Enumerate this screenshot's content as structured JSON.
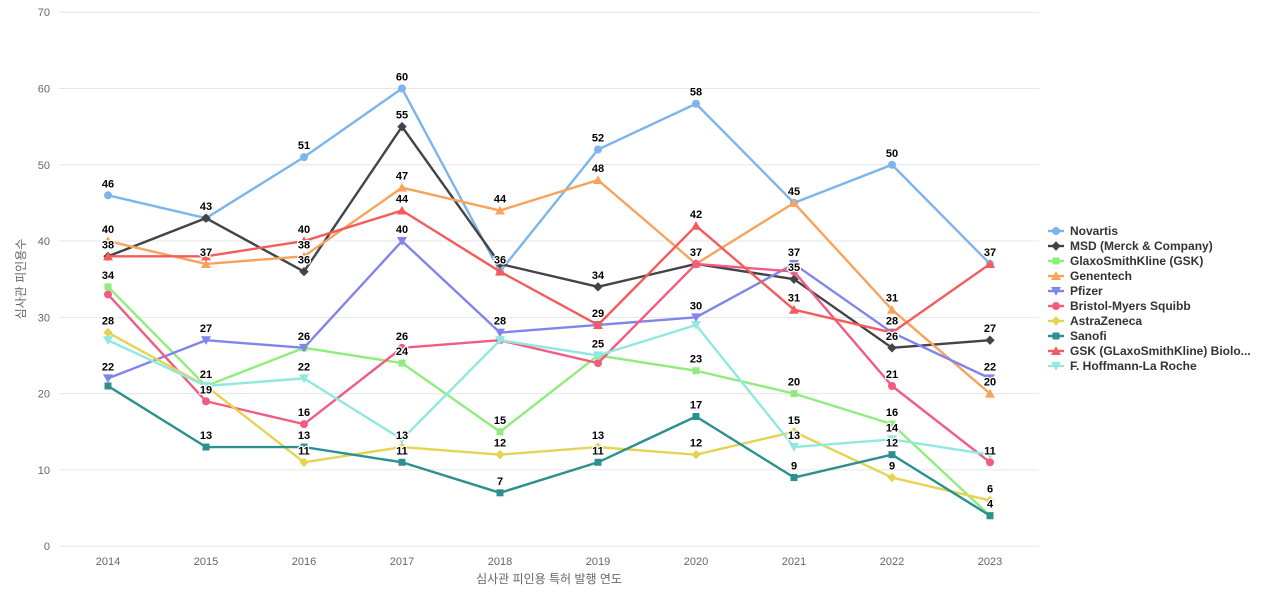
{
  "chart_data": {
    "type": "line",
    "title": "",
    "xlabel": "심사관 피인용 특허 발행 연도",
    "ylabel": "심사관 피인용수",
    "categories": [
      "2014",
      "2015",
      "2016",
      "2017",
      "2018",
      "2019",
      "2020",
      "2021",
      "2022",
      "2023"
    ],
    "yticks": [
      0,
      10,
      20,
      30,
      40,
      50,
      60,
      70
    ],
    "ylim": [
      0,
      70
    ],
    "grid": true,
    "legend_position": "right",
    "series": [
      {
        "name": "Novartis",
        "color": "#7cb5ec",
        "marker": "circle",
        "values": [
          46,
          43,
          51,
          60,
          36,
          52,
          58,
          45,
          50,
          37
        ]
      },
      {
        "name": "MSD (Merck & Company)",
        "color": "#434348",
        "marker": "diamond",
        "values": [
          38,
          43,
          36,
          55,
          37,
          34,
          37,
          35,
          26,
          27
        ]
      },
      {
        "name": "GlaxoSmithKline (GSK)",
        "color": "#90ed7d",
        "marker": "square",
        "values": [
          34,
          21,
          26,
          24,
          15,
          25,
          23,
          20,
          16,
          4
        ]
      },
      {
        "name": "Genentech",
        "color": "#f7a35c",
        "marker": "triangle",
        "values": [
          40,
          37,
          38,
          47,
          44,
          48,
          37,
          45,
          31,
          20
        ]
      },
      {
        "name": "Pfizer",
        "color": "#8085e9",
        "marker": "triangle-down",
        "values": [
          22,
          27,
          26,
          40,
          28,
          29,
          30,
          37,
          28,
          22
        ]
      },
      {
        "name": "Bristol-Myers Squibb",
        "color": "#f15c80",
        "marker": "circle",
        "values": [
          33,
          19,
          16,
          26,
          27,
          24,
          37,
          36,
          21,
          11
        ]
      },
      {
        "name": "AstraZeneca",
        "color": "#e4d354",
        "marker": "diamond",
        "values": [
          28,
          21,
          11,
          13,
          12,
          13,
          12,
          15,
          9,
          6
        ]
      },
      {
        "name": "Sanofi",
        "color": "#2b908f",
        "marker": "square",
        "values": [
          21,
          13,
          13,
          11,
          7,
          11,
          17,
          9,
          12,
          4
        ]
      },
      {
        "name": "GSK (GLaxoSmithKline) Biolo...",
        "color": "#f45b5b",
        "marker": "triangle",
        "values": [
          38,
          38,
          40,
          44,
          36,
          29,
          42,
          31,
          28,
          37
        ]
      },
      {
        "name": "F. Hoffmann-La Roche",
        "color": "#91e8e1",
        "marker": "triangle-down",
        "values": [
          27,
          21,
          22,
          14,
          27,
          25,
          29,
          13,
          14,
          12
        ]
      }
    ]
  }
}
